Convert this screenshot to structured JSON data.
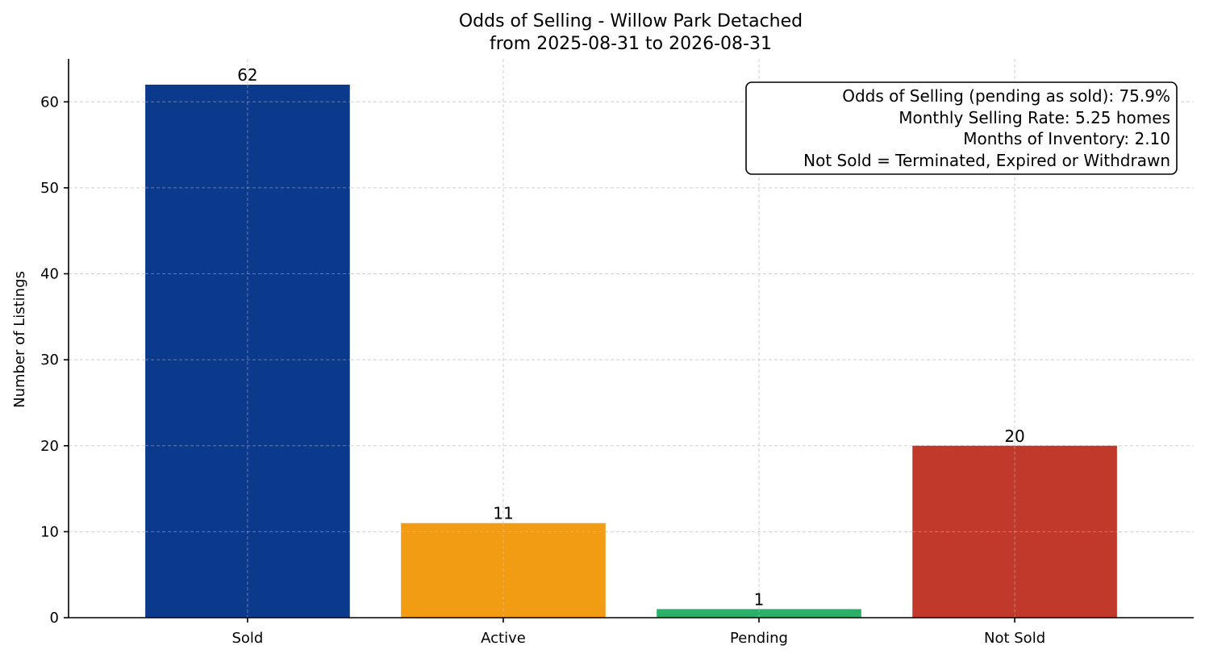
{
  "chart_data": {
    "type": "bar",
    "title_line1": "Odds of Selling - Willow Park Detached",
    "title_line2": "from 2025-08-31 to 2026-08-31",
    "xlabel": "",
    "ylabel": "Number of Listings",
    "categories": [
      "Sold",
      "Active",
      "Pending",
      "Not Sold"
    ],
    "values": [
      62,
      11,
      1,
      20
    ],
    "colors": [
      "#0b3a8c",
      "#f29c14",
      "#2bb06a",
      "#c0392b"
    ],
    "ylim": [
      0,
      65
    ],
    "yticks": [
      0,
      10,
      20,
      30,
      40,
      50,
      60
    ],
    "grid": true,
    "annotation_box": {
      "placement": "top-right",
      "lines": [
        "Odds of Selling (pending as sold): 75.9%",
        "Monthly Selling Rate: 5.25 homes",
        "Months of Inventory: 2.10",
        "Not Sold = Terminated, Expired or Withdrawn"
      ]
    }
  }
}
